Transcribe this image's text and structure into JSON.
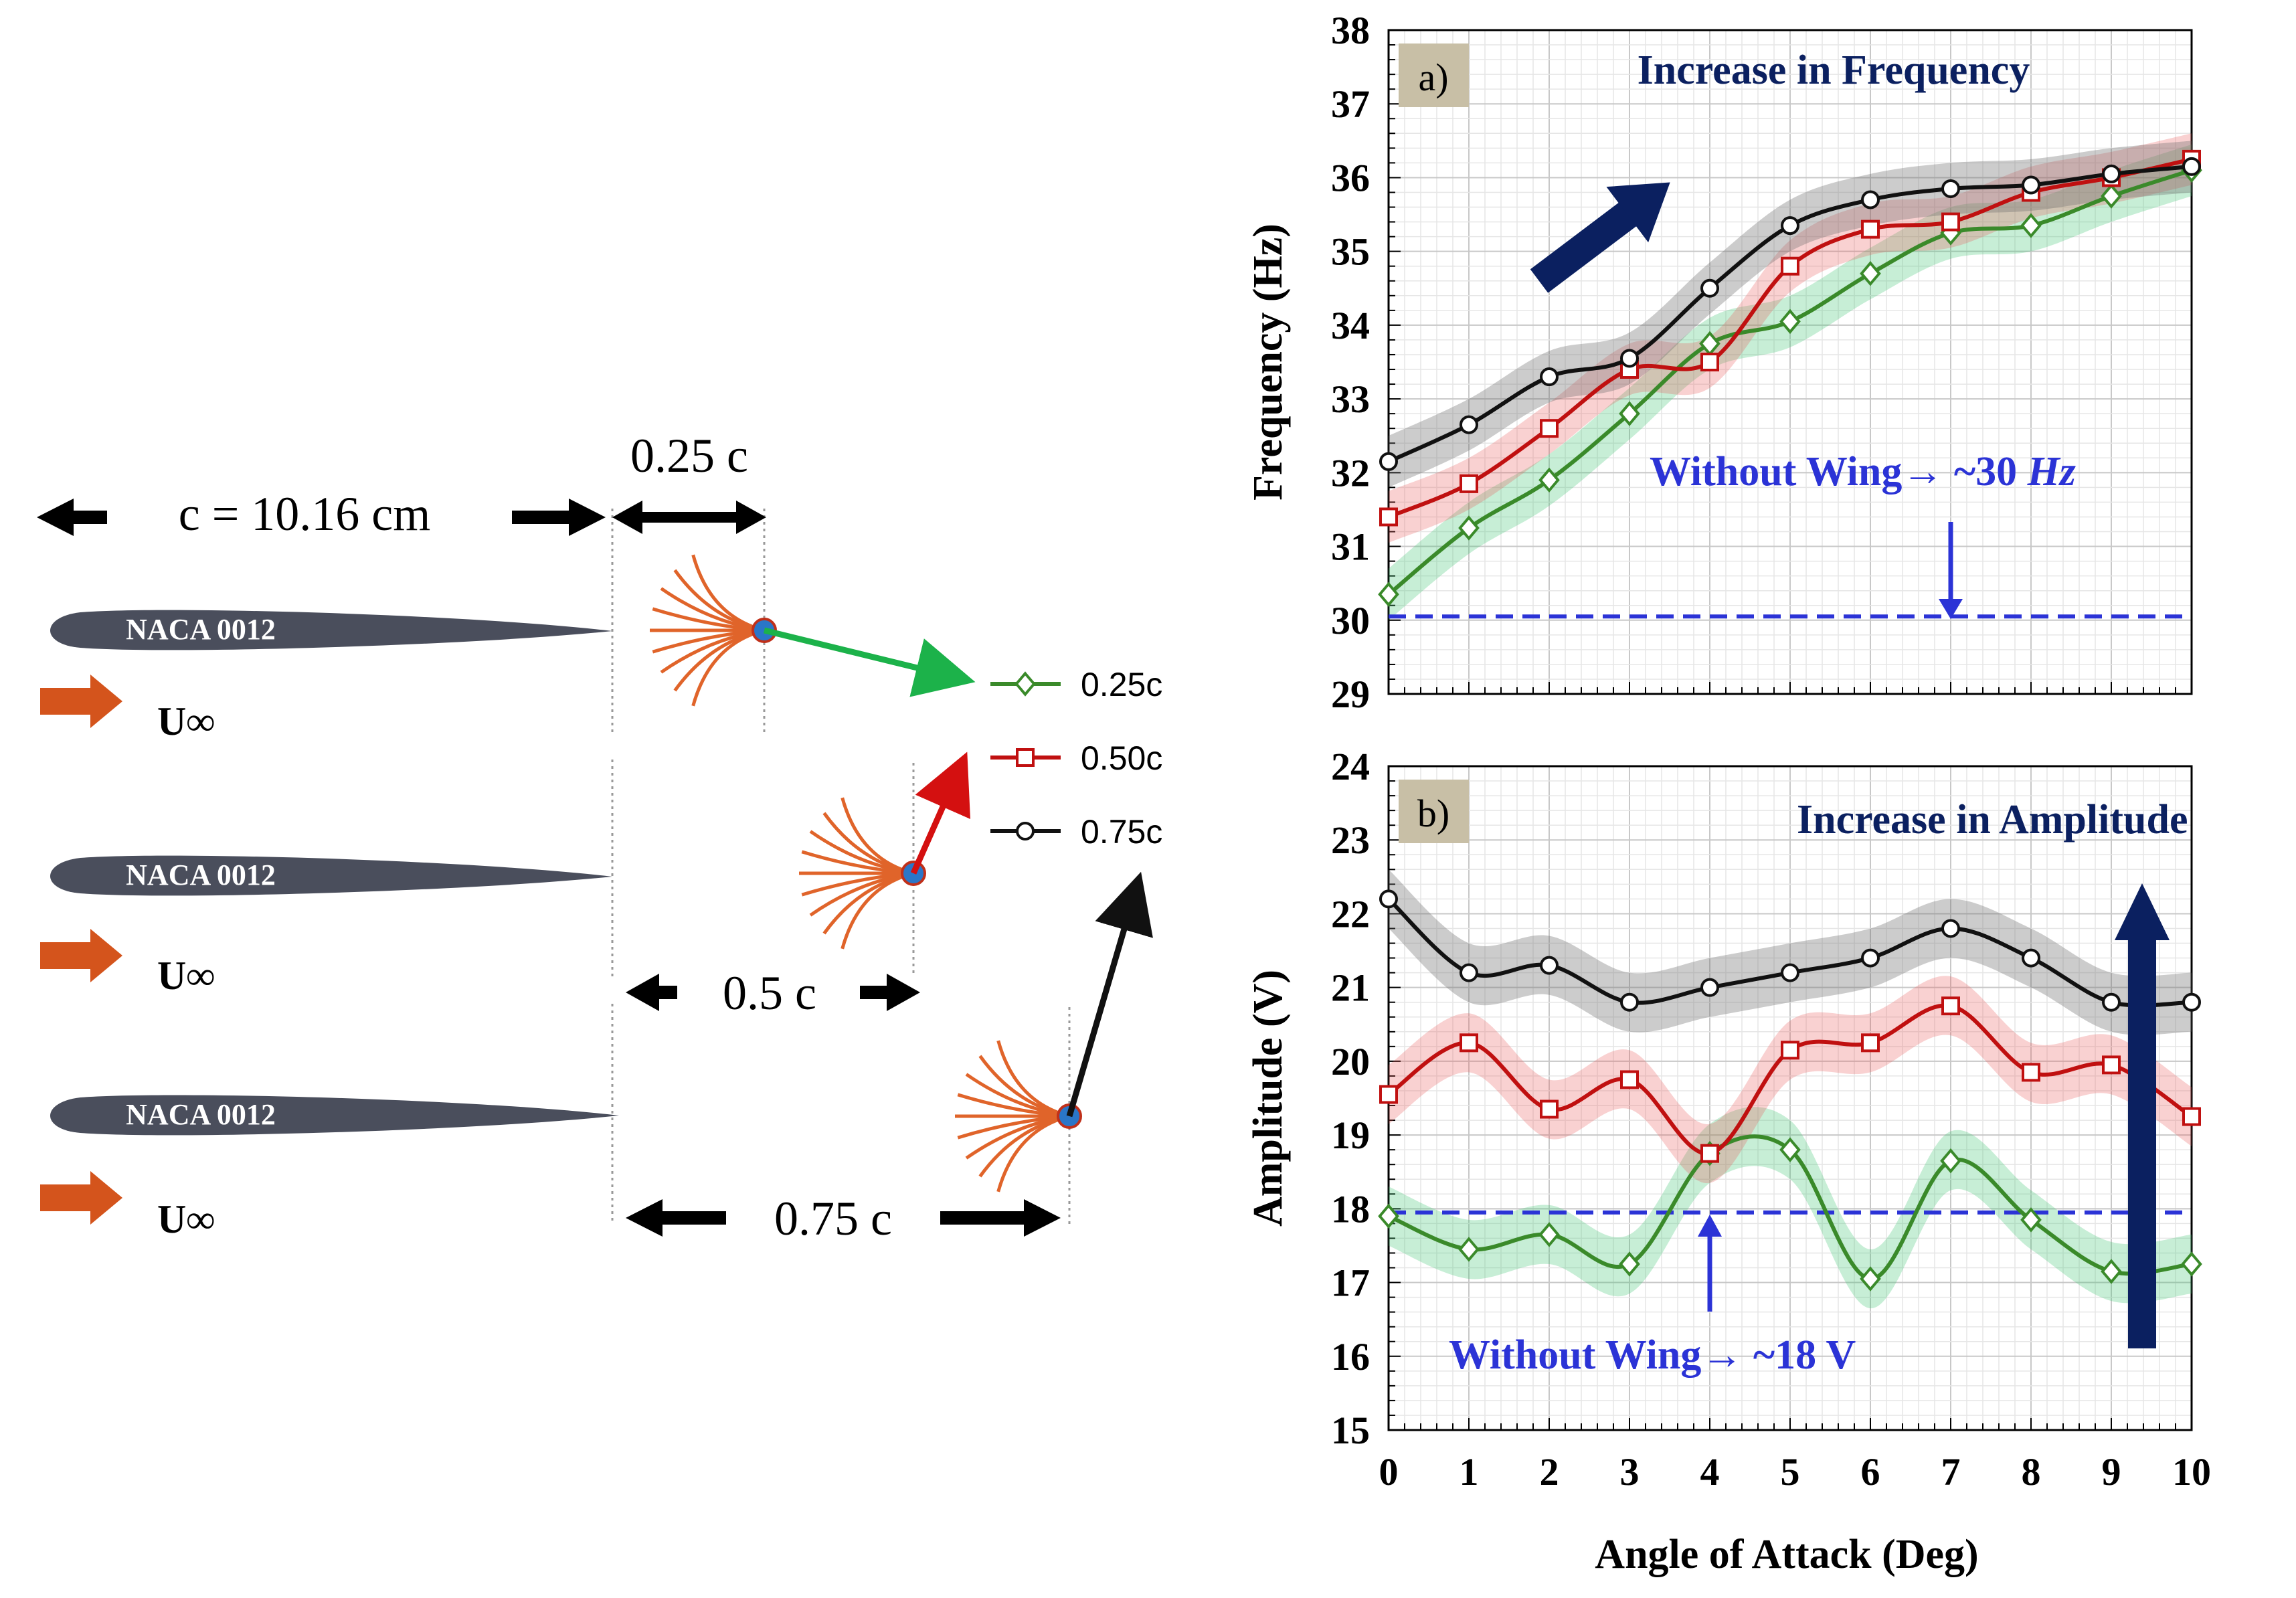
{
  "schematic": {
    "chord_label": "c = 10.16 cm",
    "offset_025_label": "0.25 c",
    "offset_05_label": "0.5 c",
    "offset_075_label": "0.75 c",
    "airfoil_labels": [
      "NACA 0012",
      "NACA 0012",
      "NACA 0012"
    ],
    "flow_label": "U∞",
    "legend": [
      {
        "name": "0.25c",
        "color": "#3a8a2a",
        "marker": "diamond"
      },
      {
        "name": "0.50c",
        "color": "#c01010",
        "marker": "square"
      },
      {
        "name": "0.75c",
        "color": "#111111",
        "marker": "circle"
      }
    ],
    "colors": {
      "airfoil": "#4a4e5c",
      "flow_arrow": "#d4541c",
      "fibers": "#e0642a",
      "fiber_tip": "#2a76c8",
      "arrow_025": "#1cb24a",
      "arrow_050": "#d41010",
      "arrow_075": "#111111"
    }
  },
  "chart_data": [
    {
      "type": "line",
      "panel_label": "a)",
      "ylabel": "Frequency (Hz)",
      "xlabel": "Angle of Attack (Deg)",
      "xlim": [
        0,
        10
      ],
      "ylim": [
        29,
        38
      ],
      "x_ticks": [
        "0",
        "1",
        "2",
        "3",
        "4",
        "5",
        "6",
        "7",
        "8",
        "9",
        "10"
      ],
      "y_ticks": [
        "29",
        "30",
        "31",
        "32",
        "33",
        "34",
        "35",
        "36",
        "37",
        "38"
      ],
      "x": [
        0,
        1,
        2,
        3,
        4,
        5,
        6,
        7,
        8,
        9,
        10
      ],
      "series": [
        {
          "name": "0.25c",
          "color": "#3a8a2a",
          "values": [
            30.35,
            31.25,
            31.9,
            32.8,
            33.75,
            34.05,
            34.7,
            35.25,
            35.35,
            35.75,
            36.1
          ]
        },
        {
          "name": "0.50c",
          "color": "#c01010",
          "values": [
            31.4,
            31.85,
            32.6,
            33.4,
            33.5,
            34.8,
            35.3,
            35.4,
            35.8,
            36.0,
            36.25
          ]
        },
        {
          "name": "0.75c",
          "color": "#111111",
          "values": [
            32.15,
            32.65,
            33.3,
            33.55,
            34.5,
            35.35,
            35.7,
            35.85,
            35.9,
            36.05,
            36.15
          ]
        }
      ],
      "reference": {
        "value": 30.05,
        "label": "Without Wing→ ~30",
        "unit": "Hz"
      },
      "annotation": "Increase in Frequency",
      "grid": true
    },
    {
      "type": "line",
      "panel_label": "b)",
      "ylabel": "Amplitude (V)",
      "xlabel": "Angle of Attack (Deg)",
      "xlim": [
        0,
        10
      ],
      "ylim": [
        15,
        24
      ],
      "x_ticks": [
        "0",
        "1",
        "2",
        "3",
        "4",
        "5",
        "6",
        "7",
        "8",
        "9",
        "10"
      ],
      "y_ticks": [
        "15",
        "16",
        "17",
        "18",
        "19",
        "20",
        "21",
        "22",
        "23",
        "24"
      ],
      "x": [
        0,
        1,
        2,
        3,
        4,
        5,
        6,
        7,
        8,
        9,
        10
      ],
      "series": [
        {
          "name": "0.25c",
          "color": "#3a8a2a",
          "values": [
            17.9,
            17.45,
            17.65,
            17.25,
            18.75,
            18.8,
            17.05,
            18.65,
            17.85,
            17.15,
            17.25
          ]
        },
        {
          "name": "0.50c",
          "color": "#c01010",
          "values": [
            19.55,
            20.25,
            19.35,
            19.75,
            18.75,
            20.15,
            20.25,
            20.75,
            19.85,
            19.95,
            19.25
          ]
        },
        {
          "name": "0.75c",
          "color": "#111111",
          "values": [
            22.2,
            21.2,
            21.3,
            20.8,
            21.0,
            21.2,
            21.4,
            21.8,
            21.4,
            20.8,
            20.8
          ]
        }
      ],
      "reference": {
        "value": 17.95,
        "label": "Without Wing→ ~18 V"
      },
      "annotation": "Increase in Amplitude",
      "grid": true
    }
  ]
}
